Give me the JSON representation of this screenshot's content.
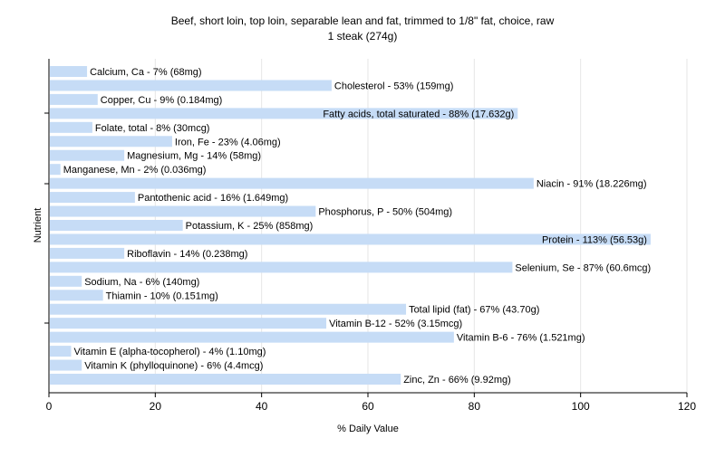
{
  "chart_data": {
    "type": "bar",
    "orientation": "horizontal",
    "title": "Beef, short loin, top loin, separable lean and fat, trimmed to 1/8\" fat, choice, raw",
    "subtitle": "1 steak (274g)",
    "xlabel": "% Daily Value",
    "ylabel": "Nutrient",
    "xlim": [
      0,
      120
    ],
    "xticks": [
      0,
      20,
      40,
      60,
      80,
      100,
      120
    ],
    "grid": true,
    "bar_color": "#c6dcf6",
    "categories": [
      "Calcium, Ca",
      "Cholesterol",
      "Copper, Cu",
      "Fatty acids, total saturated",
      "Folate, total",
      "Iron, Fe",
      "Magnesium, Mg",
      "Manganese, Mn",
      "Niacin",
      "Pantothenic acid",
      "Phosphorus, P",
      "Potassium, K",
      "Protein",
      "Riboflavin",
      "Selenium, Se",
      "Sodium, Na",
      "Thiamin",
      "Total lipid (fat)",
      "Vitamin B-12",
      "Vitamin B-6",
      "Vitamin E (alpha-tocopherol)",
      "Vitamin K (phylloquinone)",
      "Zinc, Zn"
    ],
    "values": [
      7,
      53,
      9,
      88,
      8,
      23,
      14,
      2,
      91,
      16,
      50,
      25,
      113,
      14,
      87,
      6,
      10,
      67,
      52,
      76,
      4,
      6,
      66
    ],
    "labels": [
      "Calcium, Ca - 7% (68mg)",
      "Cholesterol - 53% (159mg)",
      "Copper, Cu - 9% (0.184mg)",
      "Fatty acids, total saturated - 88% (17.632g)",
      "Folate, total - 8% (30mcg)",
      "Iron, Fe - 23% (4.06mg)",
      "Magnesium, Mg - 14% (58mg)",
      "Manganese, Mn - 2% (0.036mg)",
      "Niacin - 91% (18.226mg)",
      "Pantothenic acid - 16% (1.649mg)",
      "Phosphorus, P - 50% (504mg)",
      "Potassium, K - 25% (858mg)",
      "Protein - 113% (56.53g)",
      "Riboflavin - 14% (0.238mg)",
      "Selenium, Se - 87% (60.6mcg)",
      "Sodium, Na - 6% (140mg)",
      "Thiamin - 10% (0.151mg)",
      "Total lipid (fat) - 67% (43.70g)",
      "Vitamin B-12 - 52% (3.15mcg)",
      "Vitamin B-6 - 76% (1.521mg)",
      "Vitamin E (alpha-tocopherol) - 4% (1.10mg)",
      "Vitamin K (phylloquinone) - 6% (4.4mcg)",
      "Zinc, Zn - 66% (9.92mg)"
    ]
  }
}
